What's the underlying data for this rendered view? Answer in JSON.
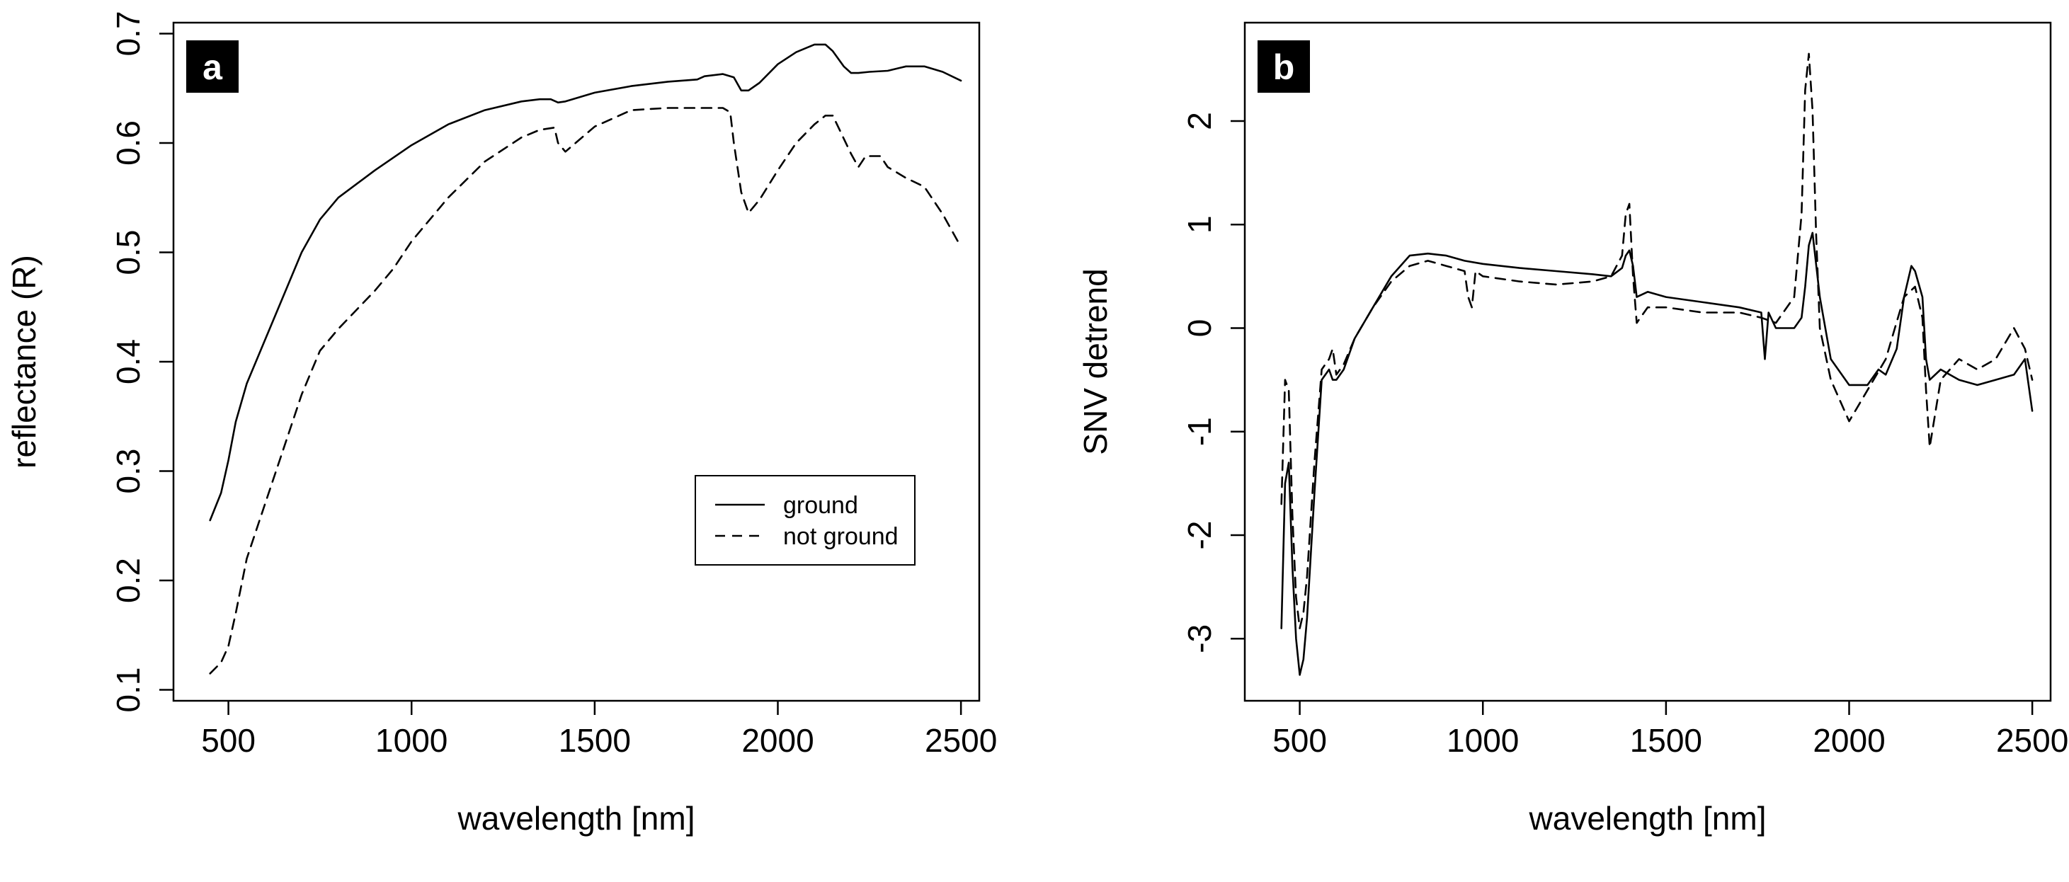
{
  "chart_data": [
    {
      "type": "line",
      "panel_label": "a",
      "xlabel": "wavelength [nm]",
      "ylabel": "reflectance (R)",
      "xlim": [
        350,
        2550
      ],
      "ylim": [
        0.09,
        0.71
      ],
      "xticks": [
        500,
        1000,
        1500,
        2000,
        2500
      ],
      "xtick_labels": [
        "500",
        "1000",
        "1500",
        "2000",
        "2500"
      ],
      "yticks": [
        0.1,
        0.2,
        0.3,
        0.4,
        0.5,
        0.6,
        0.7
      ],
      "ytick_labels": [
        "0.1",
        "0.2",
        "0.3",
        "0.4",
        "0.5",
        "0.6",
        "0.7"
      ],
      "legend": {
        "position": "lower-right",
        "entries": [
          {
            "label": "ground",
            "dash": "solid"
          },
          {
            "label": "not ground",
            "dash": "dashed"
          }
        ]
      },
      "series": [
        {
          "name": "ground",
          "dash": "solid",
          "x": [
            450,
            480,
            500,
            520,
            550,
            600,
            650,
            700,
            750,
            800,
            900,
            1000,
            1100,
            1200,
            1300,
            1350,
            1380,
            1400,
            1420,
            1500,
            1600,
            1700,
            1780,
            1800,
            1850,
            1880,
            1900,
            1920,
            1950,
            2000,
            2050,
            2100,
            2130,
            2150,
            2180,
            2200,
            2220,
            2250,
            2300,
            2350,
            2400,
            2450,
            2500
          ],
          "y": [
            0.255,
            0.28,
            0.31,
            0.345,
            0.38,
            0.42,
            0.46,
            0.5,
            0.53,
            0.55,
            0.575,
            0.598,
            0.617,
            0.63,
            0.638,
            0.64,
            0.64,
            0.637,
            0.638,
            0.646,
            0.652,
            0.656,
            0.658,
            0.661,
            0.663,
            0.66,
            0.648,
            0.648,
            0.655,
            0.672,
            0.683,
            0.69,
            0.69,
            0.684,
            0.67,
            0.664,
            0.664,
            0.665,
            0.666,
            0.67,
            0.67,
            0.665,
            0.657
          ]
        },
        {
          "name": "not ground",
          "dash": "dashed",
          "x": [
            450,
            480,
            500,
            520,
            550,
            600,
            650,
            700,
            750,
            800,
            900,
            950,
            1000,
            1100,
            1200,
            1300,
            1350,
            1390,
            1400,
            1420,
            1500,
            1600,
            1700,
            1800,
            1850,
            1870,
            1880,
            1900,
            1920,
            1950,
            2000,
            2050,
            2100,
            2130,
            2150,
            2200,
            2220,
            2240,
            2280,
            2300,
            2350,
            2400,
            2450,
            2500
          ],
          "y": [
            0.115,
            0.125,
            0.14,
            0.17,
            0.22,
            0.27,
            0.32,
            0.37,
            0.41,
            0.43,
            0.465,
            0.485,
            0.51,
            0.55,
            0.583,
            0.605,
            0.612,
            0.614,
            0.6,
            0.592,
            0.615,
            0.63,
            0.632,
            0.632,
            0.632,
            0.628,
            0.6,
            0.555,
            0.536,
            0.548,
            0.575,
            0.6,
            0.617,
            0.625,
            0.625,
            0.59,
            0.578,
            0.588,
            0.588,
            0.578,
            0.568,
            0.56,
            0.535,
            0.505
          ]
        }
      ]
    },
    {
      "type": "line",
      "panel_label": "b",
      "xlabel": "wavelength [nm]",
      "ylabel": "SNV detrend",
      "xlim": [
        350,
        2550
      ],
      "ylim": [
        -3.6,
        2.95
      ],
      "xticks": [
        500,
        1000,
        1500,
        2000,
        2500
      ],
      "xtick_labels": [
        "500",
        "1000",
        "1500",
        "2000",
        "2500"
      ],
      "yticks": [
        -3,
        -2,
        -1,
        0,
        1,
        2
      ],
      "ytick_labels": [
        "-3",
        "-2",
        "-1",
        "0",
        "1",
        "2"
      ],
      "series": [
        {
          "name": "ground",
          "dash": "solid",
          "x": [
            450,
            460,
            470,
            480,
            490,
            500,
            510,
            520,
            540,
            560,
            580,
            590,
            600,
            620,
            650,
            700,
            750,
            800,
            850,
            900,
            950,
            1000,
            1100,
            1200,
            1300,
            1350,
            1380,
            1390,
            1400,
            1410,
            1420,
            1450,
            1500,
            1600,
            1700,
            1760,
            1770,
            1780,
            1800,
            1850,
            1870,
            1880,
            1890,
            1900,
            1920,
            1950,
            2000,
            2050,
            2080,
            2100,
            2130,
            2150,
            2170,
            2180,
            2200,
            2210,
            2220,
            2250,
            2300,
            2350,
            2400,
            2450,
            2480,
            2500
          ],
          "y": [
            -2.9,
            -1.5,
            -1.3,
            -2.3,
            -3.0,
            -3.35,
            -3.2,
            -2.8,
            -1.6,
            -0.5,
            -0.4,
            -0.5,
            -0.5,
            -0.4,
            -0.1,
            0.2,
            0.5,
            0.7,
            0.72,
            0.7,
            0.65,
            0.62,
            0.58,
            0.55,
            0.52,
            0.5,
            0.58,
            0.7,
            0.75,
            0.6,
            0.3,
            0.35,
            0.3,
            0.25,
            0.2,
            0.15,
            -0.3,
            0.15,
            0.0,
            0.0,
            0.1,
            0.4,
            0.8,
            0.92,
            0.3,
            -0.3,
            -0.55,
            -0.55,
            -0.4,
            -0.45,
            -0.2,
            0.3,
            0.6,
            0.55,
            0.3,
            -0.3,
            -0.5,
            -0.4,
            -0.5,
            -0.55,
            -0.5,
            -0.45,
            -0.3,
            -0.8
          ]
        },
        {
          "name": "not ground",
          "dash": "dashed",
          "x": [
            450,
            460,
            470,
            480,
            490,
            500,
            510,
            520,
            540,
            560,
            580,
            590,
            600,
            620,
            650,
            700,
            750,
            800,
            850,
            900,
            950,
            960,
            970,
            980,
            1000,
            1100,
            1200,
            1300,
            1350,
            1380,
            1390,
            1400,
            1410,
            1420,
            1450,
            1500,
            1600,
            1700,
            1760,
            1800,
            1850,
            1870,
            1880,
            1890,
            1900,
            1910,
            1920,
            1950,
            2000,
            2050,
            2100,
            2150,
            2180,
            2200,
            2210,
            2220,
            2250,
            2300,
            2350,
            2400,
            2450,
            2480,
            2500
          ],
          "y": [
            -1.7,
            -0.5,
            -0.6,
            -1.8,
            -2.6,
            -2.9,
            -2.75,
            -2.4,
            -1.3,
            -0.4,
            -0.3,
            -0.2,
            -0.45,
            -0.35,
            -0.1,
            0.2,
            0.45,
            0.6,
            0.65,
            0.6,
            0.55,
            0.3,
            0.2,
            0.55,
            0.5,
            0.45,
            0.42,
            0.45,
            0.5,
            0.7,
            1.1,
            1.2,
            0.5,
            0.05,
            0.2,
            0.2,
            0.15,
            0.15,
            0.1,
            0.05,
            0.3,
            1.1,
            2.3,
            2.65,
            2.1,
            0.9,
            0.0,
            -0.5,
            -0.9,
            -0.6,
            -0.3,
            0.3,
            0.4,
            0.1,
            -0.6,
            -1.15,
            -0.5,
            -0.3,
            -0.4,
            -0.3,
            0.0,
            -0.2,
            -0.5
          ]
        }
      ]
    }
  ]
}
